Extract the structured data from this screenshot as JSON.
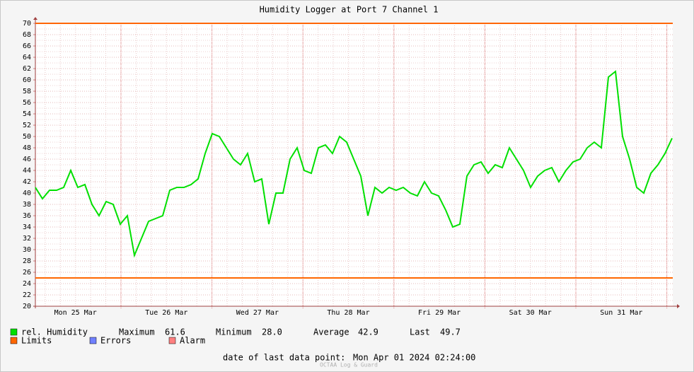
{
  "chart_data": {
    "type": "line",
    "title": "Humidity Logger at Port 7 Channel 1",
    "x_labels": [
      "Mon 25 Mar",
      "Tue 26 Mar",
      "Wed 27 Mar",
      "Thu 28 Mar",
      "Fri 29 Mar",
      "Sat 30 Mar",
      "Sun 31 Mar"
    ],
    "ylim": [
      20,
      70
    ],
    "yticks": [
      20,
      22,
      24,
      26,
      28,
      30,
      32,
      34,
      36,
      38,
      40,
      42,
      44,
      46,
      48,
      50,
      52,
      54,
      56,
      58,
      60,
      62,
      64,
      66,
      68,
      70
    ],
    "grid": true,
    "series": [
      {
        "name": "rel. Humidity",
        "color": "#00e000",
        "values": [
          41,
          39,
          40.5,
          40.5,
          41,
          44,
          41,
          41.5,
          38,
          36,
          38.5,
          38,
          34.5,
          36,
          29,
          32,
          35,
          35.5,
          36,
          40.5,
          41,
          41,
          41.5,
          42.5,
          47,
          50.5,
          50,
          48,
          46,
          45,
          47,
          42,
          42.5,
          34.5,
          40,
          40,
          46,
          48,
          44,
          43.5,
          48,
          48.5,
          47,
          50,
          49,
          46,
          43,
          36,
          41,
          40,
          41,
          40.5,
          41,
          40,
          39.5,
          42,
          40,
          39.5,
          37,
          34,
          34.5,
          43,
          45,
          45.5,
          43.5,
          45,
          44.5,
          48,
          46,
          44,
          41,
          43,
          44,
          44.5,
          42,
          44,
          45.5,
          46,
          48,
          49,
          48,
          60.5,
          61.5,
          50,
          46,
          41,
          40,
          43.5,
          45,
          47,
          49.7
        ]
      }
    ],
    "limits": {
      "name": "Limits",
      "color": "#ff6600",
      "values": [
        70,
        25
      ]
    },
    "legend_extra": [
      {
        "name": "Errors",
        "color": "#7080ff"
      },
      {
        "name": "Alarm",
        "color": "#ff8080"
      }
    ],
    "stats": [
      {
        "label": "Maximum",
        "value": "61.6"
      },
      {
        "label": "Minimum",
        "value": "28.0"
      },
      {
        "label": "Average",
        "value": "42.9"
      },
      {
        "label": "Last",
        "value": "49.7"
      }
    ],
    "footer": {
      "label": "date of last data point:",
      "value": "Mon Apr 01 2024 02:24:00"
    },
    "watermark": "OCTAA Log & Guard"
  }
}
